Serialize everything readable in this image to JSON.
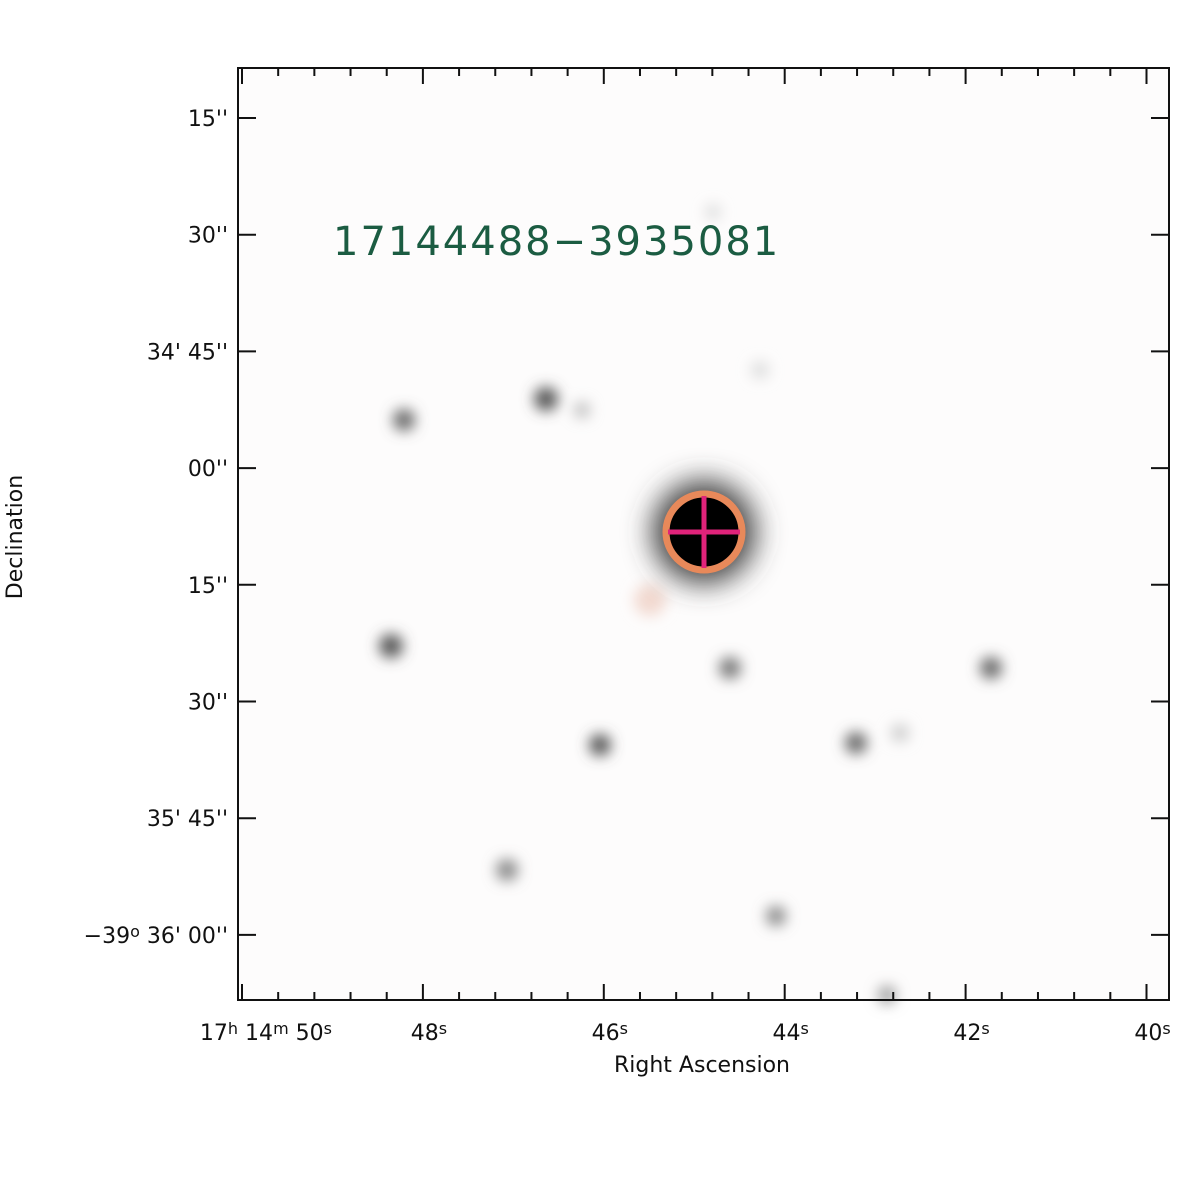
{
  "source_label": "17144488−3935081",
  "x_axis": {
    "label": "Right Ascension",
    "ticks": [
      [
        "17",
        "h",
        " 14",
        "m",
        " 50",
        "s"
      ],
      [
        "48",
        "s"
      ],
      [
        "46",
        "s"
      ],
      [
        "44",
        "s"
      ],
      [
        "42",
        "s"
      ],
      [
        "40",
        "s"
      ]
    ]
  },
  "y_axis": {
    "label": "Declination",
    "ticks": [
      [
        "15''"
      ],
      [
        "30''"
      ],
      [
        "34' 45''"
      ],
      [
        "00''"
      ],
      [
        "15''"
      ],
      [
        "30''"
      ],
      [
        "35' 45''"
      ],
      [
        "−39",
        "o",
        " 36' 00''"
      ]
    ]
  }
}
